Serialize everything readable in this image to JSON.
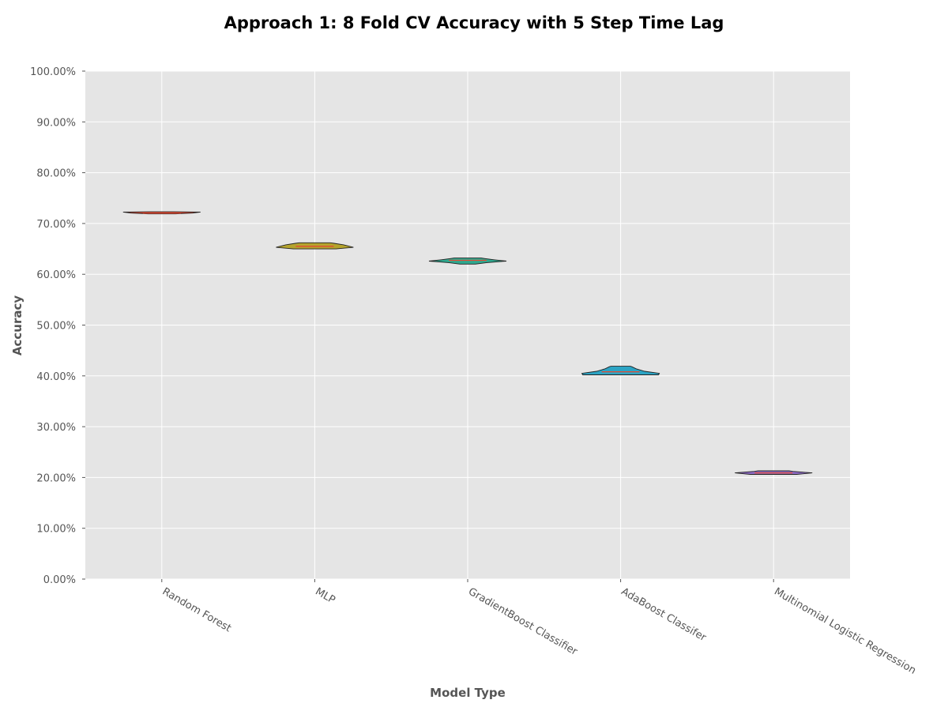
{
  "chart_data": {
    "type": "violin",
    "title": "Approach 1: 8 Fold CV Accuracy with 5 Step Time Lag",
    "xlabel": "Model Type",
    "ylabel": "Accuracy",
    "ylim": [
      0,
      1
    ],
    "y_ticks": [
      {
        "value": 0.0,
        "label": "0.00%"
      },
      {
        "value": 0.1,
        "label": "10.00%"
      },
      {
        "value": 0.2,
        "label": "20.00%"
      },
      {
        "value": 0.3,
        "label": "30.00%"
      },
      {
        "value": 0.4,
        "label": "40.00%"
      },
      {
        "value": 0.5,
        "label": "50.00%"
      },
      {
        "value": 0.6,
        "label": "60.00%"
      },
      {
        "value": 0.7,
        "label": "70.00%"
      },
      {
        "value": 0.8,
        "label": "80.00%"
      },
      {
        "value": 0.9,
        "label": "90.00%"
      },
      {
        "value": 1.0,
        "label": "100.00%"
      }
    ],
    "grid": true,
    "categories": [
      "Random Forest",
      "MLP",
      "GradientBoost Classifier",
      "AdaBoost Classifer",
      "Multinomial Logistic Regression"
    ],
    "series": [
      {
        "category": "Random Forest",
        "color": "#e24a33",
        "min": 0.719,
        "max": 0.723,
        "median": 0.7205,
        "profile": [
          [
            0.719,
            0.35
          ],
          [
            0.7205,
            0.8
          ],
          [
            0.7225,
            1.0
          ],
          [
            0.723,
            0.3
          ]
        ]
      },
      {
        "category": "MLP",
        "color": "#b5a42d",
        "min": 0.65,
        "max": 0.662,
        "median": 0.655,
        "profile": [
          [
            0.65,
            0.55
          ],
          [
            0.653,
            1.0
          ],
          [
            0.658,
            0.75
          ],
          [
            0.661,
            0.5
          ],
          [
            0.662,
            0.4
          ]
        ]
      },
      {
        "category": "GradientBoost Classifier",
        "color": "#2fa88e",
        "min": 0.62,
        "max": 0.632,
        "median": 0.6275,
        "profile": [
          [
            0.62,
            0.2
          ],
          [
            0.623,
            0.5
          ],
          [
            0.626,
            1.0
          ],
          [
            0.6285,
            0.7
          ],
          [
            0.631,
            0.45
          ],
          [
            0.632,
            0.35
          ]
        ]
      },
      {
        "category": "AdaBoost Classifer",
        "color": "#2ca4c4",
        "min": 0.402,
        "max": 0.419,
        "median": 0.408,
        "profile": [
          [
            0.402,
            0.98
          ],
          [
            0.405,
            1.0
          ],
          [
            0.409,
            0.62
          ],
          [
            0.414,
            0.4
          ],
          [
            0.418,
            0.29
          ],
          [
            0.419,
            0.25
          ]
        ]
      },
      {
        "category": "Multinomial Logistic Regression",
        "color": "#8e6cc5",
        "min": 0.206,
        "max": 0.213,
        "median": 0.209,
        "profile": [
          [
            0.206,
            0.6
          ],
          [
            0.209,
            1.0
          ],
          [
            0.212,
            0.5
          ],
          [
            0.213,
            0.4
          ]
        ]
      }
    ],
    "colors": {
      "background": "#e5e5e5",
      "grid": "#ffffff",
      "median": "#e24a33",
      "outline": "#222222"
    }
  }
}
